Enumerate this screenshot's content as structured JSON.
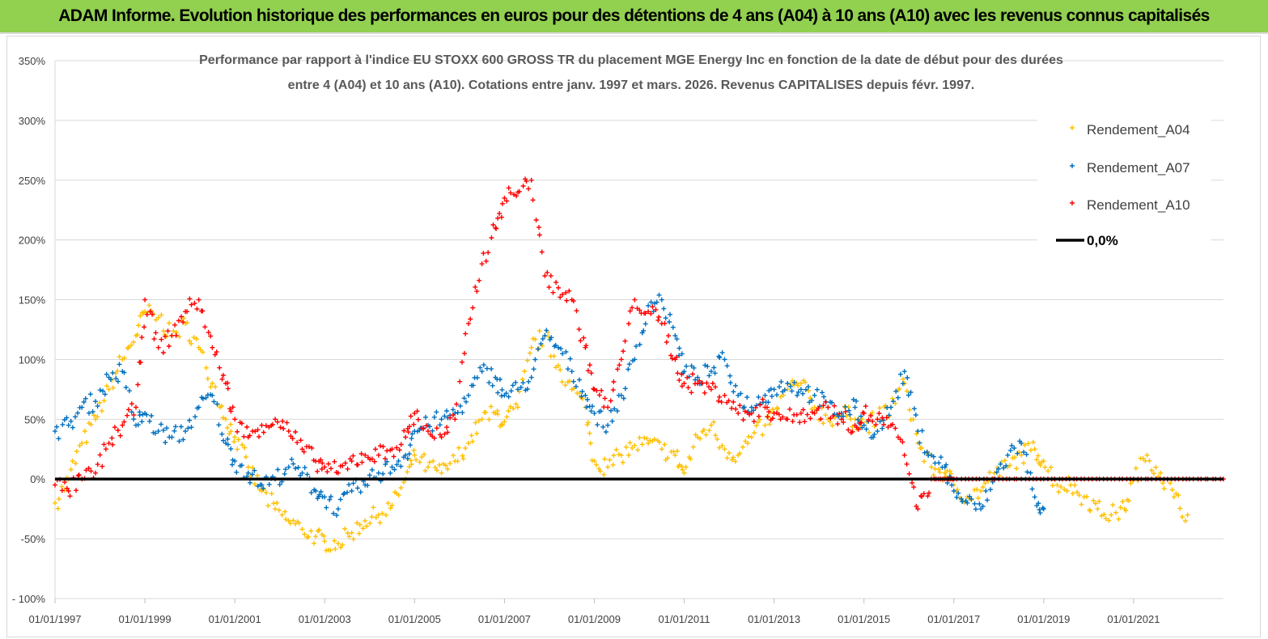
{
  "banner": {
    "title": "ADAM Informe. Evolution historique des performances en euros pour des détentions de 4 ans (A04) à 10 ans (A10) avec les revenus connus capitalisés",
    "background": "#92d050"
  },
  "chart_data": {
    "type": "scatter",
    "title_line1": "Performance par rapport à l'indice EU STOXX 600 GROSS TR  du placement MGE Energy Inc en fonction de la date de début pour des durées",
    "title_line2": "entre 4 (A04) et 10 ans (A10). Cotations entre janv. 1997 et mars. 2026. Revenus CAPITALISES depuis févr. 1997.",
    "xlabel": "",
    "ylabel": "",
    "x_range": [
      1997.0,
      2023.0
    ],
    "ylim": [
      -100,
      350
    ],
    "y_ticks": [
      -100,
      -50,
      0,
      50,
      100,
      150,
      200,
      250,
      300,
      350
    ],
    "y_tick_labels": [
      "- 100%",
      "-50%",
      "0%",
      "50%",
      "100%",
      "150%",
      "200%",
      "250%",
      "300%",
      "350%"
    ],
    "x_ticks": [
      1997,
      1999,
      2001,
      2003,
      2005,
      2007,
      2009,
      2011,
      2013,
      2015,
      2017,
      2019,
      2021
    ],
    "x_tick_labels": [
      "01/01/1997",
      "01/01/1999",
      "01/01/2001",
      "01/01/2003",
      "01/01/2005",
      "01/01/2007",
      "01/01/2009",
      "01/01/2011",
      "01/01/2013",
      "01/01/2015",
      "01/01/2017",
      "01/01/2019",
      "01/01/2021"
    ],
    "grid": true,
    "legend_position": "top-right",
    "series": [
      {
        "name": "Rendement_A04",
        "color": "#ffc000",
        "marker": "+",
        "x": [
          1997.0,
          1997.3,
          1997.6,
          1997.9,
          1998.2,
          1998.5,
          1998.8,
          1999.0,
          1999.3,
          1999.6,
          1999.9,
          2000.2,
          2000.5,
          2000.8,
          2001.0,
          2001.3,
          2001.6,
          2001.9,
          2002.2,
          2002.5,
          2002.8,
          2003.0,
          2003.3,
          2003.6,
          2003.9,
          2004.2,
          2004.5,
          2004.8,
          2005.0,
          2005.3,
          2005.6,
          2005.9,
          2006.2,
          2006.5,
          2006.8,
          2007.0,
          2007.3,
          2007.6,
          2007.9,
          2008.2,
          2008.5,
          2008.8,
          2009.0,
          2009.3,
          2009.6,
          2009.9,
          2010.2,
          2010.5,
          2010.8,
          2011.0,
          2011.3,
          2011.6,
          2011.9,
          2012.2,
          2012.5,
          2012.8,
          2013.0,
          2013.3,
          2013.6,
          2013.9,
          2014.2,
          2014.5,
          2014.8,
          2015.0,
          2015.3,
          2015.6,
          2015.9,
          2016.2,
          2016.5,
          2016.8,
          2017.0,
          2017.3,
          2017.6,
          2017.9,
          2018.2,
          2018.5,
          2018.8,
          2019.0,
          2019.3,
          2019.6,
          2019.9,
          2020.2,
          2020.5,
          2020.8,
          2021.0,
          2021.3,
          2021.6,
          2021.9,
          2022.2
        ],
        "y": [
          -20,
          0,
          30,
          50,
          75,
          100,
          120,
          140,
          135,
          120,
          130,
          110,
          80,
          50,
          35,
          10,
          -10,
          -25,
          -35,
          -42,
          -48,
          -52,
          -54,
          -45,
          -35,
          -30,
          -22,
          0,
          20,
          10,
          5,
          15,
          30,
          50,
          55,
          48,
          60,
          110,
          120,
          95,
          75,
          60,
          15,
          10,
          20,
          28,
          30,
          25,
          20,
          5,
          35,
          45,
          25,
          20,
          35,
          45,
          55,
          75,
          80,
          60,
          50,
          55,
          50,
          45,
          50,
          60,
          80,
          30,
          10,
          5,
          -5,
          -15,
          -10,
          5,
          10,
          20,
          25,
          15,
          -5,
          -5,
          -15,
          -25,
          -30,
          -25,
          0,
          20,
          5,
          -15,
          -30
        ]
      },
      {
        "name": "Rendement_A07",
        "color": "#0070c0",
        "marker": "+",
        "x": [
          1997.0,
          1997.3,
          1997.6,
          1997.9,
          1998.2,
          1998.5,
          1998.8,
          1999.0,
          1999.3,
          1999.6,
          1999.9,
          2000.2,
          2000.5,
          2000.8,
          2001.0,
          2001.3,
          2001.6,
          2001.9,
          2002.2,
          2002.5,
          2002.8,
          2003.0,
          2003.3,
          2003.6,
          2003.9,
          2004.2,
          2004.5,
          2004.8,
          2005.0,
          2005.3,
          2005.6,
          2005.9,
          2006.2,
          2006.5,
          2006.8,
          2007.0,
          2007.3,
          2007.6,
          2007.9,
          2008.2,
          2008.5,
          2008.8,
          2009.0,
          2009.3,
          2009.6,
          2009.9,
          2010.2,
          2010.5,
          2010.8,
          2011.0,
          2011.3,
          2011.6,
          2011.9,
          2012.2,
          2012.5,
          2012.8,
          2013.0,
          2013.3,
          2013.6,
          2013.9,
          2014.2,
          2014.5,
          2014.8,
          2015.0,
          2015.3,
          2015.6,
          2015.9,
          2016.2,
          2016.5,
          2016.8,
          2017.0,
          2017.3,
          2017.6,
          2017.9,
          2018.2,
          2018.5,
          2018.8,
          2019.0
        ],
        "y": [
          40,
          45,
          60,
          65,
          85,
          90,
          45,
          55,
          40,
          35,
          40,
          60,
          70,
          30,
          15,
          5,
          -5,
          0,
          10,
          5,
          -10,
          -15,
          -25,
          -10,
          -5,
          5,
          10,
          20,
          40,
          45,
          50,
          55,
          70,
          90,
          85,
          70,
          75,
          85,
          120,
          110,
          90,
          70,
          55,
          45,
          70,
          100,
          145,
          150,
          120,
          90,
          85,
          90,
          100,
          70,
          60,
          70,
          75,
          80,
          75,
          70,
          60,
          55,
          60,
          45,
          40,
          60,
          90,
          40,
          20,
          10,
          -10,
          -20,
          -25,
          0,
          20,
          30,
          -15,
          -25
        ]
      },
      {
        "name": "Rendement_A10",
        "color": "#ff0000",
        "marker": "+",
        "x": [
          1997.0,
          1997.3,
          1997.6,
          1997.9,
          1998.2,
          1998.5,
          1998.8,
          1999.0,
          1999.3,
          1999.6,
          1999.9,
          2000.2,
          2000.5,
          2000.8,
          2001.0,
          2001.3,
          2001.6,
          2001.9,
          2002.2,
          2002.5,
          2002.8,
          2003.0,
          2003.3,
          2003.6,
          2003.9,
          2004.2,
          2004.5,
          2004.8,
          2005.0,
          2005.3,
          2005.6,
          2005.9,
          2006.2,
          2006.5,
          2006.8,
          2007.0,
          2007.3,
          2007.6,
          2007.9,
          2008.2,
          2008.5,
          2008.8,
          2009.0,
          2009.3,
          2009.6,
          2009.9,
          2010.2,
          2010.5,
          2010.8,
          2011.0,
          2011.3,
          2011.6,
          2011.9,
          2012.2,
          2012.5,
          2012.8,
          2013.0,
          2013.3,
          2013.6,
          2013.9,
          2014.2,
          2014.5,
          2014.8,
          2015.0,
          2015.3,
          2015.6,
          2015.9,
          2016.2,
          2016.5,
          2016.8,
          2017.0,
          2017.5,
          2018.0,
          2018.5,
          2019.0,
          2019.5,
          2020.0,
          2020.5,
          2021.0,
          2021.5,
          2022.0,
          2022.5,
          2023.0
        ],
        "y": [
          -5,
          -10,
          0,
          5,
          30,
          45,
          60,
          150,
          110,
          120,
          140,
          150,
          110,
          80,
          50,
          35,
          45,
          50,
          40,
          25,
          15,
          10,
          5,
          15,
          20,
          20,
          25,
          35,
          55,
          40,
          35,
          50,
          130,
          180,
          210,
          235,
          240,
          250,
          170,
          160,
          150,
          110,
          75,
          60,
          100,
          150,
          140,
          130,
          100,
          80,
          80,
          75,
          70,
          55,
          55,
          60,
          55,
          50,
          55,
          55,
          60,
          50,
          45,
          55,
          50,
          45,
          20,
          -25,
          0,
          0,
          0,
          0,
          0,
          0,
          0,
          0,
          0,
          0,
          0,
          0,
          0,
          0,
          0
        ]
      },
      {
        "name": "0,0%",
        "color": "#000000",
        "marker": "line",
        "x": [
          1997.0,
          2023.0
        ],
        "y": [
          0,
          0
        ]
      }
    ]
  }
}
